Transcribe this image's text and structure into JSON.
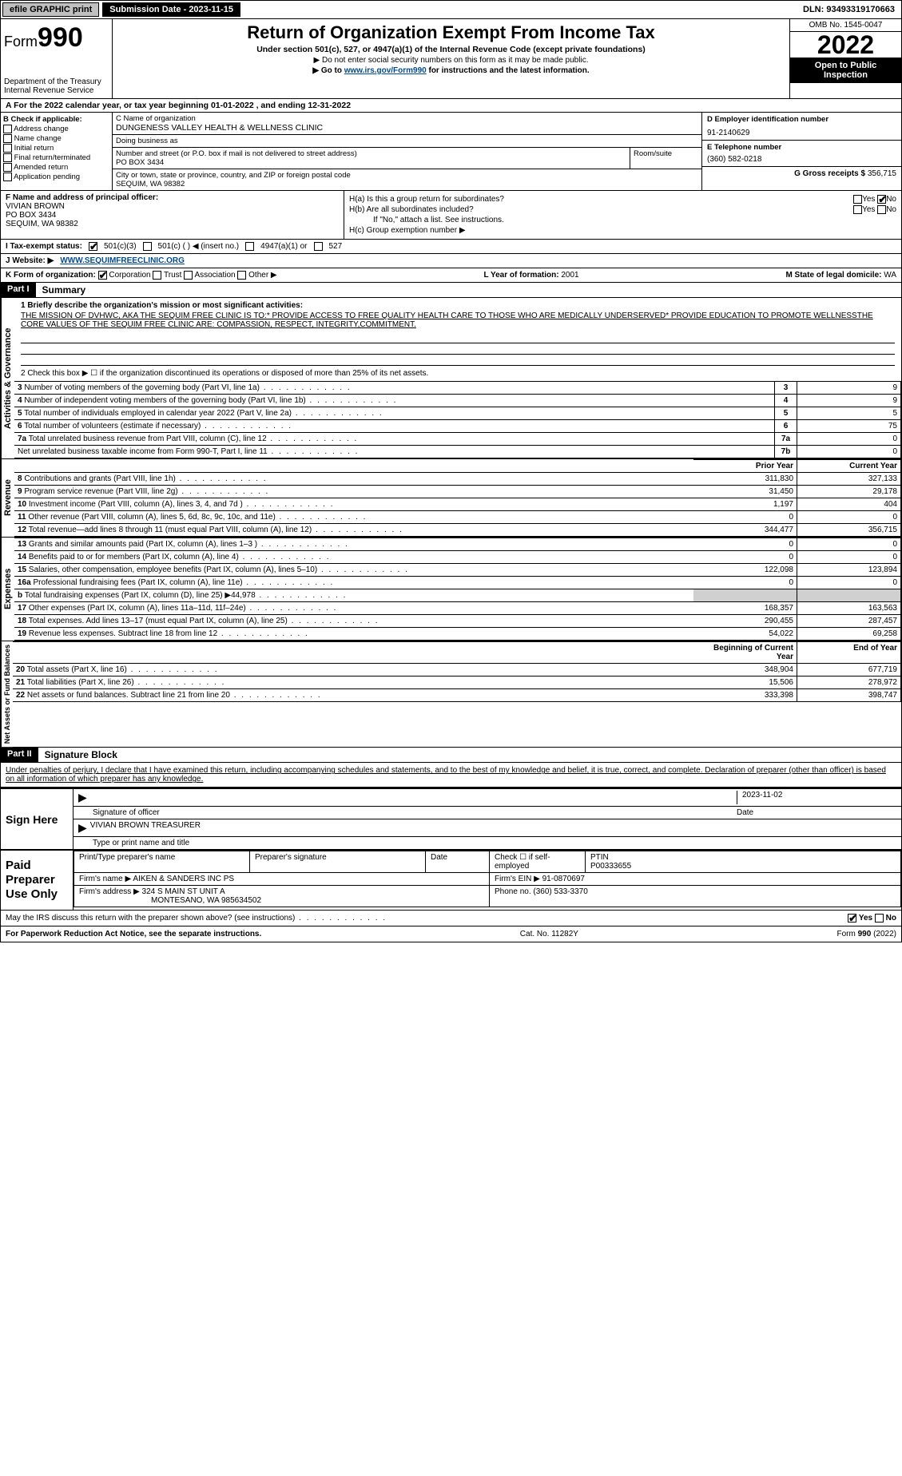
{
  "topbar": {
    "efile": "efile GRAPHIC print",
    "submission_label": "Submission Date - 2023-11-15",
    "dln_label": "DLN: 93493319170663"
  },
  "header": {
    "form_prefix": "Form",
    "form_number": "990",
    "dept1": "Department of the Treasury",
    "dept2": "Internal Revenue Service",
    "title": "Return of Organization Exempt From Income Tax",
    "subtitle": "Under section 501(c), 527, or 4947(a)(1) of the Internal Revenue Code (except private foundations)",
    "note1": "▶ Do not enter social security numbers on this form as it may be made public.",
    "note2_pre": "▶ Go to ",
    "note2_link": "www.irs.gov/Form990",
    "note2_post": " for instructions and the latest information.",
    "omb": "OMB No. 1545-0047",
    "year": "2022",
    "inspect": "Open to Public Inspection"
  },
  "row_a": {
    "text": "A For the 2022 calendar year, or tax year beginning 01-01-2022   , and ending 12-31-2022"
  },
  "col_b": {
    "title": "B Check if applicable:",
    "opts": [
      "Address change",
      "Name change",
      "Initial return",
      "Final return/terminated",
      "Amended return",
      "Application pending"
    ]
  },
  "col_c": {
    "name_label": "C Name of organization",
    "name": "DUNGENESS VALLEY HEALTH & WELLNESS CLINIC",
    "dba_label": "Doing business as",
    "addr_label": "Number and street (or P.O. box if mail is not delivered to street address)",
    "room_label": "Room/suite",
    "addr": "PO BOX 3434",
    "city_label": "City or town, state or province, country, and ZIP or foreign postal code",
    "city": "SEQUIM, WA  98382"
  },
  "col_de": {
    "d_label": "D Employer identification number",
    "ein": "91-2140629",
    "e_label": "E Telephone number",
    "phone": "(360) 582-0218",
    "g_label": "G Gross receipts $",
    "g_val": "356,715"
  },
  "block_f": {
    "label": "F Name and address of principal officer:",
    "name": "VIVIAN BROWN",
    "addr1": "PO BOX 3434",
    "addr2": "SEQUIM, WA  98382"
  },
  "block_h": {
    "ha": "H(a)  Is this a group return for subordinates?",
    "hb": "H(b)  Are all subordinates included?",
    "hb_note": "If \"No,\" attach a list. See instructions.",
    "hc": "H(c)  Group exemption number ▶",
    "yes": "Yes",
    "no": "No"
  },
  "row_i": {
    "label": "I  Tax-exempt status:",
    "o1": "501(c)(3)",
    "o2": "501(c) (  ) ◀ (insert no.)",
    "o3": "4947(a)(1) or",
    "o4": "527"
  },
  "row_j": {
    "label": "J  Website: ▶",
    "val": "WWW.SEQUIMFREECLINIC.ORG"
  },
  "row_k": {
    "label": "K Form of organization:",
    "o1": "Corporation",
    "o2": "Trust",
    "o3": "Association",
    "o4": "Other ▶",
    "l_label": "L Year of formation:",
    "l_val": "2001",
    "m_label": "M State of legal domicile:",
    "m_val": "WA"
  },
  "part1": {
    "hdr": "Part I",
    "title": "Summary",
    "side1": "Activities & Governance",
    "side2": "Revenue",
    "side3": "Expenses",
    "side4": "Net Assets or Fund Balances",
    "line1_label": "1  Briefly describe the organization's mission or most significant activities:",
    "mission": "THE MISSION OF DVHWC, AKA THE SEQUIM FREE CLINIC IS TO:* PROVIDE ACCESS TO FREE QUALITY HEALTH CARE TO THOSE WHO ARE MEDICALLY UNDERSERVED* PROVIDE EDUCATION TO PROMOTE WELLNESSTHE CORE VALUES OF THE SEQUIM FREE CLINIC ARE: COMPASSION, RESPECT, INTEGRITY,COMMITMENT.",
    "line2": "2   Check this box ▶ ☐ if the organization discontinued its operations or disposed of more than 25% of its net assets.",
    "rows_ag": [
      {
        "n": "3",
        "t": "Number of voting members of the governing body (Part VI, line 1a)",
        "c": "3",
        "v": "9"
      },
      {
        "n": "4",
        "t": "Number of independent voting members of the governing body (Part VI, line 1b)",
        "c": "4",
        "v": "9"
      },
      {
        "n": "5",
        "t": "Total number of individuals employed in calendar year 2022 (Part V, line 2a)",
        "c": "5",
        "v": "5"
      },
      {
        "n": "6",
        "t": "Total number of volunteers (estimate if necessary)",
        "c": "6",
        "v": "75"
      },
      {
        "n": "7a",
        "t": "Total unrelated business revenue from Part VIII, column (C), line 12",
        "c": "7a",
        "v": "0"
      },
      {
        "n": "",
        "t": "Net unrelated business taxable income from Form 990-T, Part I, line 11",
        "c": "7b",
        "v": "0"
      }
    ],
    "col_py": "Prior Year",
    "col_cy": "Current Year",
    "rows_rev": [
      {
        "n": "8",
        "t": "Contributions and grants (Part VIII, line 1h)",
        "py": "311,830",
        "cy": "327,133"
      },
      {
        "n": "9",
        "t": "Program service revenue (Part VIII, line 2g)",
        "py": "31,450",
        "cy": "29,178"
      },
      {
        "n": "10",
        "t": "Investment income (Part VIII, column (A), lines 3, 4, and 7d )",
        "py": "1,197",
        "cy": "404"
      },
      {
        "n": "11",
        "t": "Other revenue (Part VIII, column (A), lines 5, 6d, 8c, 9c, 10c, and 11e)",
        "py": "0",
        "cy": "0"
      },
      {
        "n": "12",
        "t": "Total revenue—add lines 8 through 11 (must equal Part VIII, column (A), line 12)",
        "py": "344,477",
        "cy": "356,715"
      }
    ],
    "rows_exp": [
      {
        "n": "13",
        "t": "Grants and similar amounts paid (Part IX, column (A), lines 1–3 )",
        "py": "0",
        "cy": "0"
      },
      {
        "n": "14",
        "t": "Benefits paid to or for members (Part IX, column (A), line 4)",
        "py": "0",
        "cy": "0"
      },
      {
        "n": "15",
        "t": "Salaries, other compensation, employee benefits (Part IX, column (A), lines 5–10)",
        "py": "122,098",
        "cy": "123,894"
      },
      {
        "n": "16a",
        "t": "Professional fundraising fees (Part IX, column (A), line 11e)",
        "py": "0",
        "cy": "0"
      },
      {
        "n": "b",
        "t": "Total fundraising expenses (Part IX, column (D), line 25) ▶44,978",
        "py": "",
        "cy": "",
        "shade": true
      },
      {
        "n": "17",
        "t": "Other expenses (Part IX, column (A), lines 11a–11d, 11f–24e)",
        "py": "168,357",
        "cy": "163,563"
      },
      {
        "n": "18",
        "t": "Total expenses. Add lines 13–17 (must equal Part IX, column (A), line 25)",
        "py": "290,455",
        "cy": "287,457"
      },
      {
        "n": "19",
        "t": "Revenue less expenses. Subtract line 18 from line 12",
        "py": "54,022",
        "cy": "69,258"
      }
    ],
    "col_boy": "Beginning of Current Year",
    "col_eoy": "End of Year",
    "rows_net": [
      {
        "n": "20",
        "t": "Total assets (Part X, line 16)",
        "py": "348,904",
        "cy": "677,719"
      },
      {
        "n": "21",
        "t": "Total liabilities (Part X, line 26)",
        "py": "15,506",
        "cy": "278,972"
      },
      {
        "n": "22",
        "t": "Net assets or fund balances. Subtract line 21 from line 20",
        "py": "333,398",
        "cy": "398,747"
      }
    ]
  },
  "part2": {
    "hdr": "Part II",
    "title": "Signature Block",
    "penalty": "Under penalties of perjury, I declare that I have examined this return, including accompanying schedules and statements, and to the best of my knowledge and belief, it is true, correct, and complete. Declaration of preparer (other than officer) is based on all information of which preparer has any knowledge.",
    "sign_here": "Sign Here",
    "sig_officer": "Signature of officer",
    "sig_date": "Date",
    "date_val": "2023-11-02",
    "officer_name": "VIVIAN BROWN  TREASURER",
    "officer_sub": "Type or print name and title",
    "paid": "Paid Preparer Use Only",
    "p_name_l": "Print/Type preparer's name",
    "p_sig_l": "Preparer's signature",
    "p_date_l": "Date",
    "p_check": "Check ☐ if self-employed",
    "p_ptin_l": "PTIN",
    "p_ptin": "P00333655",
    "firm_name_l": "Firm's name   ▶",
    "firm_name": "AIKEN & SANDERS INC PS",
    "firm_ein_l": "Firm's EIN ▶",
    "firm_ein": "91-0870697",
    "firm_addr_l": "Firm's address ▶",
    "firm_addr": "324 S MAIN ST UNIT A",
    "firm_city": "MONTESANO, WA  985634502",
    "firm_phone_l": "Phone no.",
    "firm_phone": "(360) 533-3370",
    "discuss": "May the IRS discuss this return with the preparer shown above? (see instructions)",
    "yes": "Yes",
    "no": "No"
  },
  "footer": {
    "pra": "For Paperwork Reduction Act Notice, see the separate instructions.",
    "cat": "Cat. No. 11282Y",
    "form": "Form 990 (2022)"
  }
}
